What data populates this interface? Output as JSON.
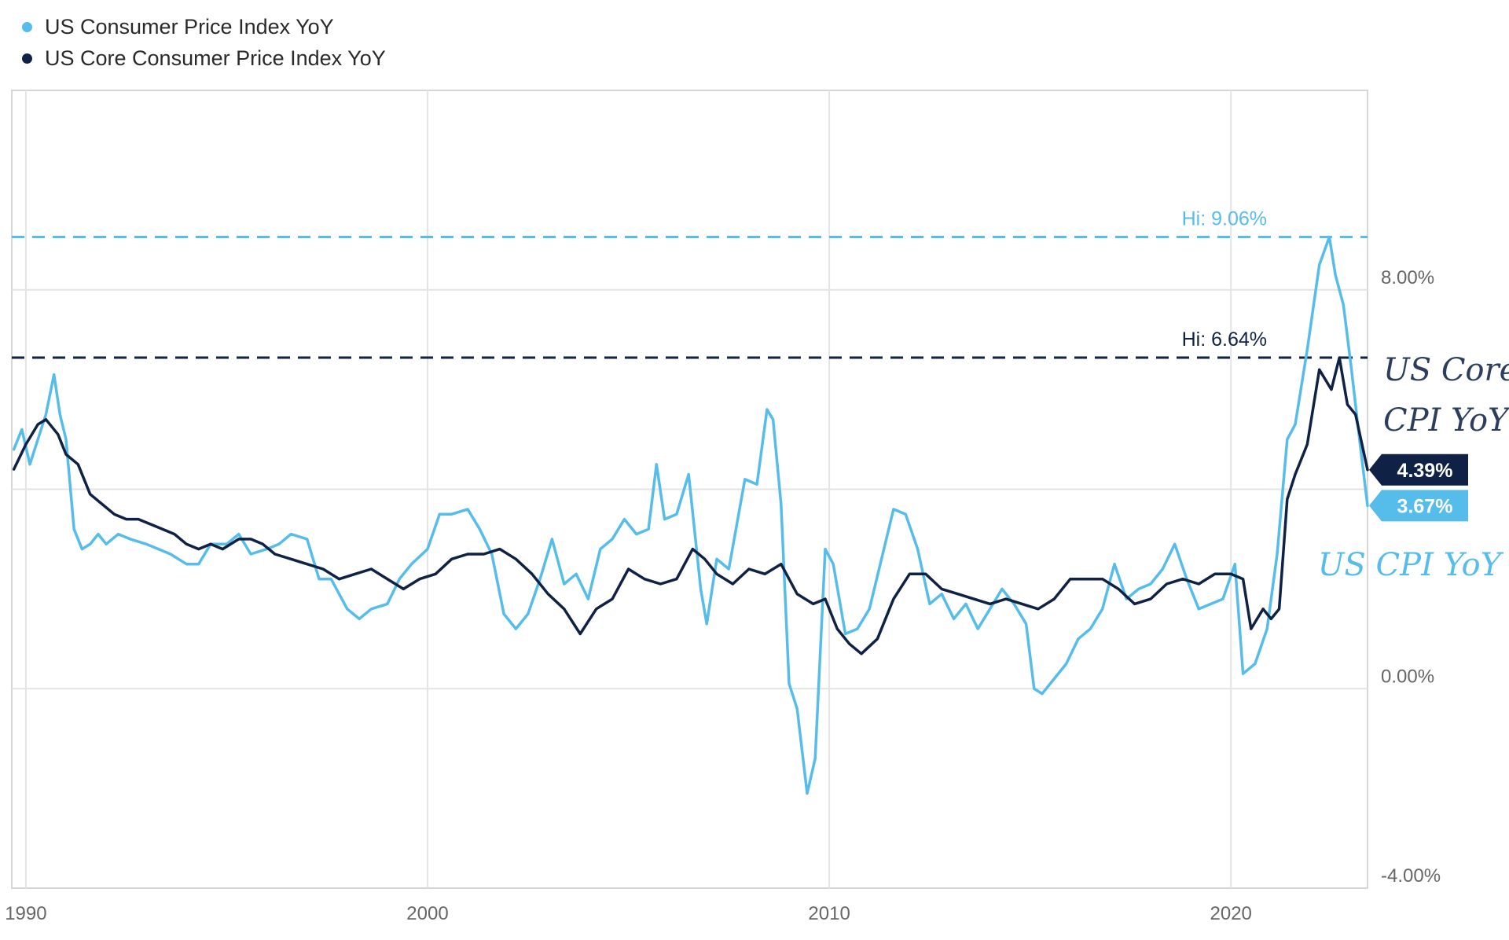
{
  "legend": [
    {
      "name": "US Consumer Price Index YoY",
      "color": "#56bdeb"
    },
    {
      "name": "US Core Consumer Price Index YoY",
      "color": "#0f2145"
    }
  ],
  "chart_data": {
    "type": "line",
    "x_unit": "year",
    "xlim": [
      1989.65,
      2023.4
    ],
    "ylim": [
      -4,
      12
    ],
    "x_ticks": [
      "1990",
      "2000",
      "2010",
      "2020"
    ],
    "y_ticks": [
      "8.00%",
      "0.00%",
      "-4.00%"
    ],
    "grid": true,
    "legend_position": "top-left",
    "series": [
      {
        "name": "US Consumer Price Index YoY",
        "color": "#56bdeb",
        "x": [
          1989.7,
          1989.9,
          1990.1,
          1990.3,
          1990.5,
          1990.7,
          1990.85,
          1991.0,
          1991.2,
          1991.4,
          1991.6,
          1991.8,
          1992.0,
          1992.3,
          1992.6,
          1993.0,
          1993.3,
          1993.6,
          1994.0,
          1994.3,
          1994.6,
          1995.0,
          1995.3,
          1995.6,
          1996.0,
          1996.3,
          1996.6,
          1997.0,
          1997.3,
          1997.6,
          1998.0,
          1998.3,
          1998.6,
          1999.0,
          1999.3,
          1999.6,
          2000.0,
          2000.3,
          2000.6,
          2001.0,
          2001.3,
          2001.6,
          2001.9,
          2002.2,
          2002.5,
          2002.8,
          2003.1,
          2003.4,
          2003.7,
          2004.0,
          2004.3,
          2004.6,
          2004.9,
          2005.2,
          2005.5,
          2005.7,
          2005.9,
          2006.2,
          2006.5,
          2006.8,
          2006.95,
          2007.2,
          2007.5,
          2007.9,
          2008.2,
          2008.45,
          2008.6,
          2008.8,
          2009.0,
          2009.2,
          2009.45,
          2009.65,
          2009.9,
          2010.1,
          2010.4,
          2010.7,
          2011.0,
          2011.3,
          2011.6,
          2011.9,
          2012.2,
          2012.5,
          2012.8,
          2013.1,
          2013.4,
          2013.7,
          2014.0,
          2014.3,
          2014.6,
          2014.9,
          2015.1,
          2015.3,
          2015.6,
          2015.9,
          2016.2,
          2016.5,
          2016.8,
          2017.1,
          2017.4,
          2017.7,
          2018.0,
          2018.3,
          2018.6,
          2018.9,
          2019.2,
          2019.5,
          2019.8,
          2020.1,
          2020.3,
          2020.6,
          2020.9,
          2021.15,
          2021.4,
          2021.6,
          2021.9,
          2022.2,
          2022.45,
          2022.6,
          2022.8,
          2023.0,
          2023.2,
          2023.4
        ],
        "values": [
          4.8,
          5.2,
          4.5,
          5.0,
          5.5,
          6.3,
          5.5,
          5.0,
          3.2,
          2.8,
          2.9,
          3.1,
          2.9,
          3.1,
          3.0,
          2.9,
          2.8,
          2.7,
          2.5,
          2.5,
          2.9,
          2.9,
          3.1,
          2.7,
          2.8,
          2.9,
          3.1,
          3.0,
          2.2,
          2.2,
          1.6,
          1.4,
          1.6,
          1.7,
          2.2,
          2.5,
          2.8,
          3.5,
          3.5,
          3.6,
          3.2,
          2.7,
          1.5,
          1.2,
          1.5,
          2.2,
          3.0,
          2.1,
          2.3,
          1.8,
          2.8,
          3.0,
          3.4,
          3.1,
          3.2,
          4.5,
          3.4,
          3.5,
          4.3,
          2.0,
          1.3,
          2.6,
          2.4,
          4.2,
          4.1,
          5.6,
          5.4,
          3.7,
          0.1,
          -0.4,
          -2.1,
          -1.4,
          2.8,
          2.5,
          1.1,
          1.2,
          1.6,
          2.6,
          3.6,
          3.5,
          2.8,
          1.7,
          1.9,
          1.4,
          1.7,
          1.2,
          1.6,
          2.0,
          1.7,
          1.3,
          0.0,
          -0.1,
          0.2,
          0.5,
          1.0,
          1.2,
          1.6,
          2.5,
          1.8,
          2.0,
          2.1,
          2.4,
          2.9,
          2.2,
          1.6,
          1.7,
          1.8,
          2.5,
          0.3,
          0.5,
          1.2,
          2.7,
          5.0,
          5.3,
          6.8,
          8.5,
          9.06,
          8.3,
          7.7,
          6.4,
          5.0,
          3.67
        ]
      },
      {
        "name": "US Core Consumer Price Index YoY",
        "color": "#0f2145",
        "x": [
          1989.7,
          1990.0,
          1990.3,
          1990.5,
          1990.8,
          1991.0,
          1991.3,
          1991.6,
          1991.9,
          1992.2,
          1992.5,
          1992.8,
          1993.1,
          1993.4,
          1993.7,
          1994.0,
          1994.3,
          1994.6,
          1994.9,
          1995.3,
          1995.6,
          1995.9,
          1996.2,
          1996.6,
          1997.0,
          1997.4,
          1997.8,
          1998.2,
          1998.6,
          1999.0,
          1999.4,
          1999.8,
          2000.2,
          2000.6,
          2001.0,
          2001.4,
          2001.8,
          2002.2,
          2002.6,
          2003.0,
          2003.4,
          2003.8,
          2004.2,
          2004.6,
          2005.0,
          2005.4,
          2005.8,
          2006.2,
          2006.6,
          2006.9,
          2007.2,
          2007.6,
          2008.0,
          2008.4,
          2008.8,
          2009.2,
          2009.6,
          2009.9,
          2010.2,
          2010.5,
          2010.8,
          2011.2,
          2011.6,
          2012.0,
          2012.4,
          2012.8,
          2013.2,
          2013.6,
          2014.0,
          2014.4,
          2014.8,
          2015.2,
          2015.6,
          2016.0,
          2016.4,
          2016.8,
          2017.2,
          2017.6,
          2018.0,
          2018.4,
          2018.8,
          2019.2,
          2019.6,
          2020.0,
          2020.3,
          2020.5,
          2020.8,
          2021.0,
          2021.2,
          2021.4,
          2021.6,
          2021.9,
          2022.2,
          2022.5,
          2022.7,
          2022.9,
          2023.1,
          2023.4
        ],
        "values": [
          4.4,
          4.9,
          5.3,
          5.4,
          5.1,
          4.7,
          4.5,
          3.9,
          3.7,
          3.5,
          3.4,
          3.4,
          3.3,
          3.2,
          3.1,
          2.9,
          2.8,
          2.9,
          2.8,
          3.0,
          3.0,
          2.9,
          2.7,
          2.6,
          2.5,
          2.4,
          2.2,
          2.3,
          2.4,
          2.2,
          2.0,
          2.2,
          2.3,
          2.6,
          2.7,
          2.7,
          2.8,
          2.6,
          2.3,
          1.9,
          1.6,
          1.1,
          1.6,
          1.8,
          2.4,
          2.2,
          2.1,
          2.2,
          2.8,
          2.6,
          2.3,
          2.1,
          2.4,
          2.3,
          2.5,
          1.9,
          1.7,
          1.8,
          1.2,
          0.9,
          0.7,
          1.0,
          1.8,
          2.3,
          2.3,
          2.0,
          1.9,
          1.8,
          1.7,
          1.8,
          1.7,
          1.6,
          1.8,
          2.2,
          2.2,
          2.2,
          2.0,
          1.7,
          1.8,
          2.1,
          2.2,
          2.1,
          2.3,
          2.3,
          2.2,
          1.2,
          1.6,
          1.4,
          1.6,
          3.8,
          4.3,
          4.9,
          6.4,
          6.0,
          6.64,
          5.7,
          5.5,
          4.39
        ]
      }
    ],
    "reference_lines": [
      {
        "label": "Hi: 9.06%",
        "value": 9.06,
        "color": "#56bdeb"
      },
      {
        "label": "Hi: 6.64%",
        "value": 6.64,
        "color": "#0f2145"
      }
    ],
    "end_labels": [
      {
        "label": "4.39%",
        "value": 4.39,
        "color": "#0f2145"
      },
      {
        "label": "3.67%",
        "value": 3.67,
        "color": "#56bdeb"
      }
    ],
    "annotations": [
      {
        "lines": [
          "US Core",
          "CPI YoY"
        ],
        "color": "#2b3f5c"
      },
      {
        "lines": [
          "US CPI YoY"
        ],
        "color": "#56bdeb"
      }
    ]
  }
}
